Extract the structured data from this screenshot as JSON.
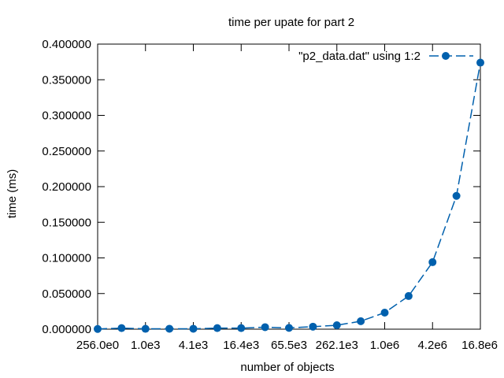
{
  "chart_data": {
    "type": "line",
    "title": "time per upate for part 2",
    "xlabel": "number of objects",
    "ylabel": "time (ms)",
    "x_scale": "log2",
    "xlim": [
      256,
      16777216
    ],
    "ylim": [
      0,
      0.4
    ],
    "grid": false,
    "legend_placement": "top-right",
    "x_ticks": [
      {
        "value": 256,
        "label": "256.0e0"
      },
      {
        "value": 1024,
        "label": "1.0e3"
      },
      {
        "value": 4096,
        "label": "4.1e3"
      },
      {
        "value": 16384,
        "label": "16.4e3"
      },
      {
        "value": 65536,
        "label": "65.5e3"
      },
      {
        "value": 262144,
        "label": "262.1e3"
      },
      {
        "value": 1048576,
        "label": "1.0e6"
      },
      {
        "value": 4194304,
        "label": "4.2e6"
      },
      {
        "value": 16777216,
        "label": "16.8e6"
      }
    ],
    "y_ticks": [
      {
        "value": 0,
        "label": "0.000000"
      },
      {
        "value": 0.05,
        "label": "0.050000"
      },
      {
        "value": 0.1,
        "label": "0.100000"
      },
      {
        "value": 0.15,
        "label": "0.150000"
      },
      {
        "value": 0.2,
        "label": "0.200000"
      },
      {
        "value": 0.25,
        "label": "0.250000"
      },
      {
        "value": 0.3,
        "label": "0.300000"
      },
      {
        "value": 0.35,
        "label": "0.350000"
      },
      {
        "value": 0.4,
        "label": "0.400000"
      }
    ],
    "series": [
      {
        "name": "\"p2_data.dat\" using 1:2",
        "color": "#0060ad",
        "line_style": "dashed",
        "marker": "circle",
        "x": [
          256,
          512,
          1024,
          2048,
          4096,
          8192,
          16384,
          32768,
          65536,
          131072,
          262144,
          524288,
          1048576,
          2097152,
          4194304,
          8388608,
          16777216
        ],
        "y": [
          0.0003,
          0.0015,
          0.0005,
          0.0006,
          0.0006,
          0.0015,
          0.0015,
          0.0028,
          0.0018,
          0.0035,
          0.0055,
          0.0112,
          0.0232,
          0.0465,
          0.094,
          0.187,
          0.374
        ]
      }
    ]
  }
}
